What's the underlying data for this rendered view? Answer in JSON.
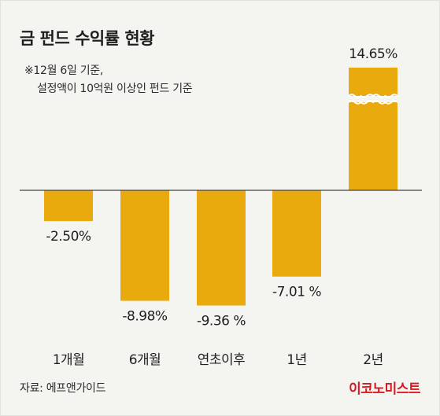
{
  "title": "금 펀드 수익률 현황",
  "note": {
    "line1": "※12월 6일 기준,",
    "line2": "설정액이 10억원 이상인 펀드 기준"
  },
  "source": "자료: 에프앤가이드",
  "brand": "이코노미스트",
  "colors": {
    "bar": "#e8aa0c",
    "axis": "#444444",
    "text": "#1f1f1f",
    "brand": "#d71920",
    "background": "#f4f4f1"
  },
  "chart_data": {
    "type": "bar",
    "title": "금 펀드 수익률 현황",
    "categories": [
      "1개월",
      "6개월",
      "연초이후",
      "1년",
      "2년"
    ],
    "values": [
      -2.5,
      -8.98,
      -9.36,
      -7.01,
      14.65
    ],
    "data_labels": [
      "-2.50%",
      "-8.98%",
      "-9.36 %",
      "-7.01 %",
      "14.65%"
    ],
    "axis_break": "2년 bar drawn with a wavy break (truncated)",
    "ylim": [
      -10,
      15
    ],
    "grid": false
  }
}
